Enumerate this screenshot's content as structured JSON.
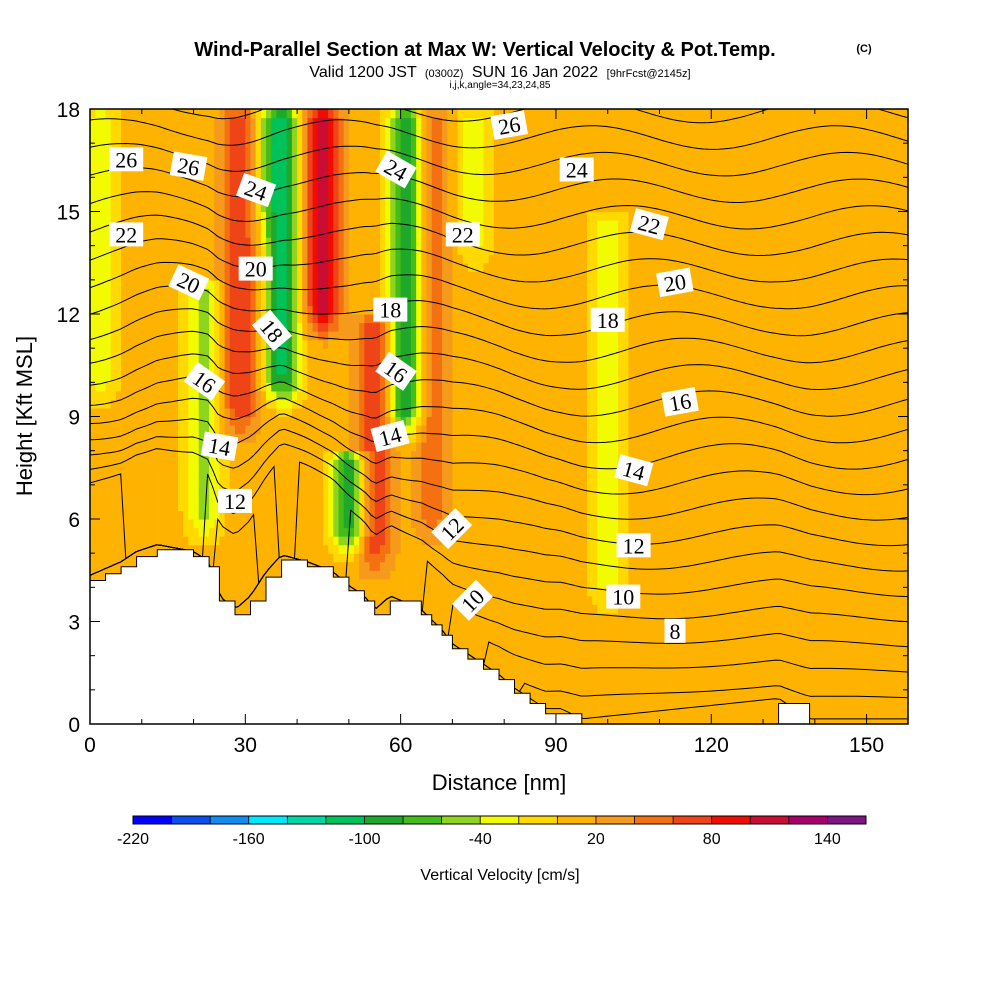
{
  "chart_data": {
    "type": "heatmap",
    "title": "Wind-Parallel Section at Max W: Vertical Velocity & Pot.Temp.",
    "title_mark": "(C)",
    "subtitle": {
      "valid": "Valid 1200 JST",
      "utc": "(0300Z)",
      "date": "SUN 16 Jan 2022",
      "forecast": "[9hrFcst@2145z]"
    },
    "info_line": "i,j,k,angle=34,23,24,85",
    "xlabel": "Distance [nm]",
    "ylabel": "Height [Kft MSL]",
    "xlim": [
      0,
      158
    ],
    "ylim": [
      0,
      18
    ],
    "x_ticks": [
      0,
      30,
      60,
      90,
      120,
      150
    ],
    "y_ticks": [
      0,
      3,
      6,
      9,
      12,
      15,
      18
    ],
    "x_ticks_minor_step": 10,
    "y_ticks_minor_step": 1,
    "colorbar": {
      "title": "Vertical Velocity [cm/s]",
      "min": -220,
      "max": 160,
      "step": 20,
      "tick_labels": [
        -220,
        -160,
        -100,
        -40,
        20,
        80,
        140
      ],
      "colors": [
        "#0000ff",
        "#0a4ff2",
        "#0f8df0",
        "#00e8ff",
        "#00d7a8",
        "#00c25a",
        "#1fa82a",
        "#44bd19",
        "#8fd41f",
        "#f3fb00",
        "#ffd900",
        "#fdb300",
        "#f59a1b",
        "#f57011",
        "#ee4417",
        "#f00d00",
        "#c90d35",
        "#a8006c",
        "#7f1387"
      ]
    },
    "vertical_velocity_field": {
      "background_value": 10,
      "features": [
        {
          "x": 2,
          "z0": 9,
          "z1": 18,
          "value": -35
        },
        {
          "x": 22,
          "z0": 5,
          "z1": 13,
          "value": -50
        },
        {
          "x": 29,
          "z0": 8,
          "z1": 18,
          "value": 80
        },
        {
          "x": 33,
          "z0": 14,
          "z1": 18,
          "value": -15
        },
        {
          "x": 37,
          "z0": 9,
          "z1": 18,
          "value": -110
        },
        {
          "x": 45,
          "z0": 11,
          "z1": 18,
          "value": 115
        },
        {
          "x": 50,
          "z0": 4.6,
          "z1": 8,
          "value": -95
        },
        {
          "x": 55,
          "z0": 4,
          "z1": 12,
          "value": 75
        },
        {
          "x": 61,
          "z0": 8,
          "z1": 18,
          "value": -100
        },
        {
          "x": 66,
          "z0": 5,
          "z1": 18,
          "value": 55
        },
        {
          "x": 74,
          "z0": 13,
          "z1": 18,
          "value": -30
        },
        {
          "x": 100,
          "z0": 3,
          "z1": 15,
          "value": -30
        }
      ]
    },
    "terrain_top_kft": [
      {
        "x": 0,
        "top": 4.2
      },
      {
        "x": 3,
        "top": 4.4
      },
      {
        "x": 6,
        "top": 4.6
      },
      {
        "x": 9,
        "top": 4.9
      },
      {
        "x": 13,
        "top": 5.1
      },
      {
        "x": 20,
        "top": 4.9
      },
      {
        "x": 23,
        "top": 4.6
      },
      {
        "x": 25,
        "top": 3.6
      },
      {
        "x": 28,
        "top": 3.2
      },
      {
        "x": 31,
        "top": 3.6
      },
      {
        "x": 34,
        "top": 4.3
      },
      {
        "x": 37,
        "top": 4.8
      },
      {
        "x": 42,
        "top": 4.6
      },
      {
        "x": 47,
        "top": 4.3
      },
      {
        "x": 50,
        "top": 3.9
      },
      {
        "x": 53,
        "top": 3.6
      },
      {
        "x": 55,
        "top": 3.2
      },
      {
        "x": 58,
        "top": 3.6
      },
      {
        "x": 64,
        "top": 3.2
      },
      {
        "x": 66,
        "top": 2.9
      },
      {
        "x": 68,
        "top": 2.6
      },
      {
        "x": 70,
        "top": 2.2
      },
      {
        "x": 73,
        "top": 1.9
      },
      {
        "x": 76,
        "top": 1.6
      },
      {
        "x": 79,
        "top": 1.3
      },
      {
        "x": 82,
        "top": 0.9
      },
      {
        "x": 85,
        "top": 0.6
      },
      {
        "x": 88,
        "top": 0.3
      },
      {
        "x": 91,
        "top": 0.3
      },
      {
        "x": 95,
        "top": 0.0
      },
      {
        "x": 133,
        "top": 0.6
      },
      {
        "x": 139,
        "top": 0.0
      },
      {
        "x": 158,
        "top": 0.0
      }
    ],
    "potential_temperature_contours": {
      "levels_min": 3,
      "levels_max": 27,
      "levels_step": 1,
      "labels": [
        {
          "text": "26",
          "x": 7,
          "z": 16.5,
          "angle": 0
        },
        {
          "text": "26",
          "x": 19,
          "z": 16.3,
          "angle": 10
        },
        {
          "text": "24",
          "x": 32,
          "z": 15.6,
          "angle": 20
        },
        {
          "text": "24",
          "x": 59,
          "z": 16.2,
          "angle": 30
        },
        {
          "text": "26",
          "x": 81,
          "z": 17.5,
          "angle": -10
        },
        {
          "text": "24",
          "x": 94,
          "z": 16.2,
          "angle": 0
        },
        {
          "text": "22",
          "x": 7,
          "z": 14.3,
          "angle": 0
        },
        {
          "text": "22",
          "x": 72,
          "z": 14.3,
          "angle": 0
        },
        {
          "text": "22",
          "x": 108,
          "z": 14.6,
          "angle": 15
        },
        {
          "text": "20",
          "x": 19,
          "z": 12.9,
          "angle": 25
        },
        {
          "text": "20",
          "x": 32,
          "z": 13.3,
          "angle": 0
        },
        {
          "text": "20",
          "x": 113,
          "z": 12.9,
          "angle": -10
        },
        {
          "text": "18",
          "x": 35,
          "z": 11.5,
          "angle": 50
        },
        {
          "text": "18",
          "x": 58,
          "z": 12.1,
          "angle": 0
        },
        {
          "text": "18",
          "x": 100,
          "z": 11.8,
          "angle": 0
        },
        {
          "text": "16",
          "x": 22,
          "z": 10.0,
          "angle": 35
        },
        {
          "text": "16",
          "x": 59,
          "z": 10.3,
          "angle": 35
        },
        {
          "text": "16",
          "x": 114,
          "z": 9.4,
          "angle": -10
        },
        {
          "text": "14",
          "x": 25,
          "z": 8.1,
          "angle": 10
        },
        {
          "text": "14",
          "x": 58,
          "z": 8.4,
          "angle": -15
        },
        {
          "text": "14",
          "x": 105,
          "z": 7.4,
          "angle": 15
        },
        {
          "text": "12",
          "x": 28,
          "z": 6.5,
          "angle": 0
        },
        {
          "text": "12",
          "x": 70,
          "z": 5.7,
          "angle": -45
        },
        {
          "text": "12",
          "x": 105,
          "z": 5.2,
          "angle": 0
        },
        {
          "text": "10",
          "x": 74,
          "z": 3.6,
          "angle": -45
        },
        {
          "text": "10",
          "x": 103,
          "z": 3.7,
          "angle": 0
        },
        {
          "text": "8",
          "x": 113,
          "z": 2.7,
          "angle": 0
        }
      ]
    }
  }
}
